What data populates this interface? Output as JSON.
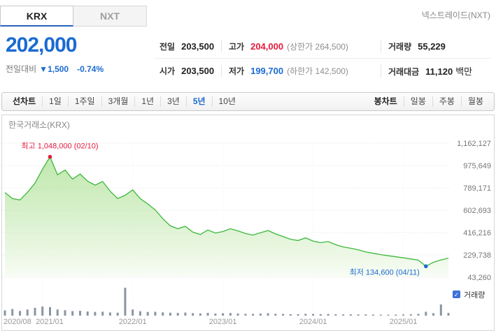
{
  "tabs": {
    "krx": "KRX",
    "nxt": "NXT",
    "right_note": "넥스트레이드(NXT)"
  },
  "price": {
    "current": "202,000",
    "change_label": "전일대비",
    "change_dir": "▼",
    "change_value": "1,500",
    "change_pct": "-0.74%"
  },
  "quote": {
    "rows": [
      [
        {
          "label": "전일",
          "value": "203,500"
        },
        {
          "label": "고가",
          "value": "204,000",
          "extra": "(상한가 264,500)"
        },
        {
          "label": "거래량",
          "value": "55,229"
        }
      ],
      [
        {
          "label": "시가",
          "value": "203,500"
        },
        {
          "label": "저가",
          "value": "199,700",
          "extra": "(하한가 142,500)"
        },
        {
          "label": "거래대금",
          "value": "11,120",
          "suffix": "백만"
        }
      ]
    ]
  },
  "toolbar": {
    "line_label": "선차트",
    "ranges": [
      "1일",
      "1주일",
      "3개월",
      "1년",
      "3년",
      "5년",
      "10년"
    ],
    "selected_range": "5년",
    "candle_label": "봉차트",
    "candle_options": [
      "일봉",
      "주봉",
      "월봉"
    ]
  },
  "icons": {
    "down_triangle": "▼",
    "check": "✓"
  },
  "chart_data": {
    "type": "area",
    "title": "한국거래소(KRX)",
    "legend_position": "right-of-volume-pane",
    "grid": true,
    "x_tick_labels": [
      "2020/08",
      "2021/01",
      "2022/01",
      "2023/01",
      "2024/01",
      "2025/01"
    ],
    "x_tick_month_index": [
      0,
      5,
      17,
      29,
      41,
      53
    ],
    "y_tick_labels": [
      "1,162,127",
      "975,649",
      "789,171",
      "602,693",
      "416,216",
      "229,738",
      "43,260"
    ],
    "y_tick_values": [
      1162127,
      975649,
      789171,
      602693,
      416216,
      229738,
      43260
    ],
    "ylim": [
      43260,
      1162127
    ],
    "months": [
      "2020-08",
      "2020-09",
      "2020-10",
      "2020-11",
      "2020-12",
      "2021-01",
      "2021-02",
      "2021-03",
      "2021-04",
      "2021-05",
      "2021-06",
      "2021-07",
      "2021-08",
      "2021-09",
      "2021-10",
      "2021-11",
      "2021-12",
      "2022-01",
      "2022-02",
      "2022-03",
      "2022-04",
      "2022-05",
      "2022-06",
      "2022-07",
      "2022-08",
      "2022-09",
      "2022-10",
      "2022-11",
      "2022-12",
      "2023-01",
      "2023-02",
      "2023-03",
      "2023-04",
      "2023-05",
      "2023-06",
      "2023-07",
      "2023-08",
      "2023-09",
      "2023-10",
      "2023-11",
      "2023-12",
      "2024-01",
      "2024-02",
      "2024-03",
      "2024-04",
      "2024-05",
      "2024-06",
      "2024-07",
      "2024-08",
      "2024-09",
      "2024-10",
      "2024-11",
      "2024-12",
      "2025-01",
      "2025-02",
      "2025-03",
      "2025-04",
      "2025-05",
      "2025-06",
      "2025-07"
    ],
    "price": [
      750000,
      700000,
      688000,
      752000,
      828000,
      945000,
      1048000,
      898000,
      938000,
      862000,
      905000,
      845000,
      812000,
      842000,
      762000,
      700000,
      728000,
      772000,
      700000,
      655000,
      605000,
      532000,
      472000,
      448000,
      468000,
      420000,
      400000,
      438000,
      412000,
      425000,
      448000,
      430000,
      408000,
      395000,
      415000,
      433000,
      405000,
      383000,
      360000,
      350000,
      372000,
      345000,
      332000,
      341000,
      315000,
      296000,
      285000,
      272000,
      254000,
      243000,
      232000,
      223000,
      214000,
      205000,
      196000,
      186000,
      134600,
      168000,
      188000,
      202000
    ],
    "volume": [
      180,
      225,
      160,
      210,
      265,
      310,
      290,
      210,
      185,
      155,
      165,
      140,
      125,
      135,
      110,
      100,
      950,
      210,
      150,
      125,
      130,
      112,
      100,
      92,
      104,
      82,
      74,
      92,
      72,
      80,
      90,
      72,
      62,
      60,
      70,
      80,
      62,
      56,
      50,
      50,
      62,
      56,
      50,
      56,
      46,
      42,
      46,
      40,
      40,
      36,
      34,
      30,
      36,
      40,
      46,
      60,
      130,
      84,
      380,
      92
    ],
    "volume_unit": "relative",
    "volume_legend": "거래량",
    "annotations": {
      "max": {
        "label": "최고 1,048,000 (02/10)",
        "month_index": 6,
        "value": 1048000,
        "color": "#e5193d"
      },
      "min": {
        "label": "최저 134,600 (04/11)",
        "month_index": 56,
        "value": 134600,
        "color": "#1c6bd1"
      }
    },
    "colors": {
      "line": "#3cb83c",
      "fill_top": "rgba(141,213,107,0.55)",
      "fill_bottom": "rgba(245,251,240,0.65)",
      "volume": "#8b95a3",
      "grid": "#e4e4e4",
      "vgrid": "#ededed",
      "y_label": "#777777",
      "x_label": "#999999",
      "title": "#888888",
      "legend_box": "#3f6fd8"
    }
  }
}
